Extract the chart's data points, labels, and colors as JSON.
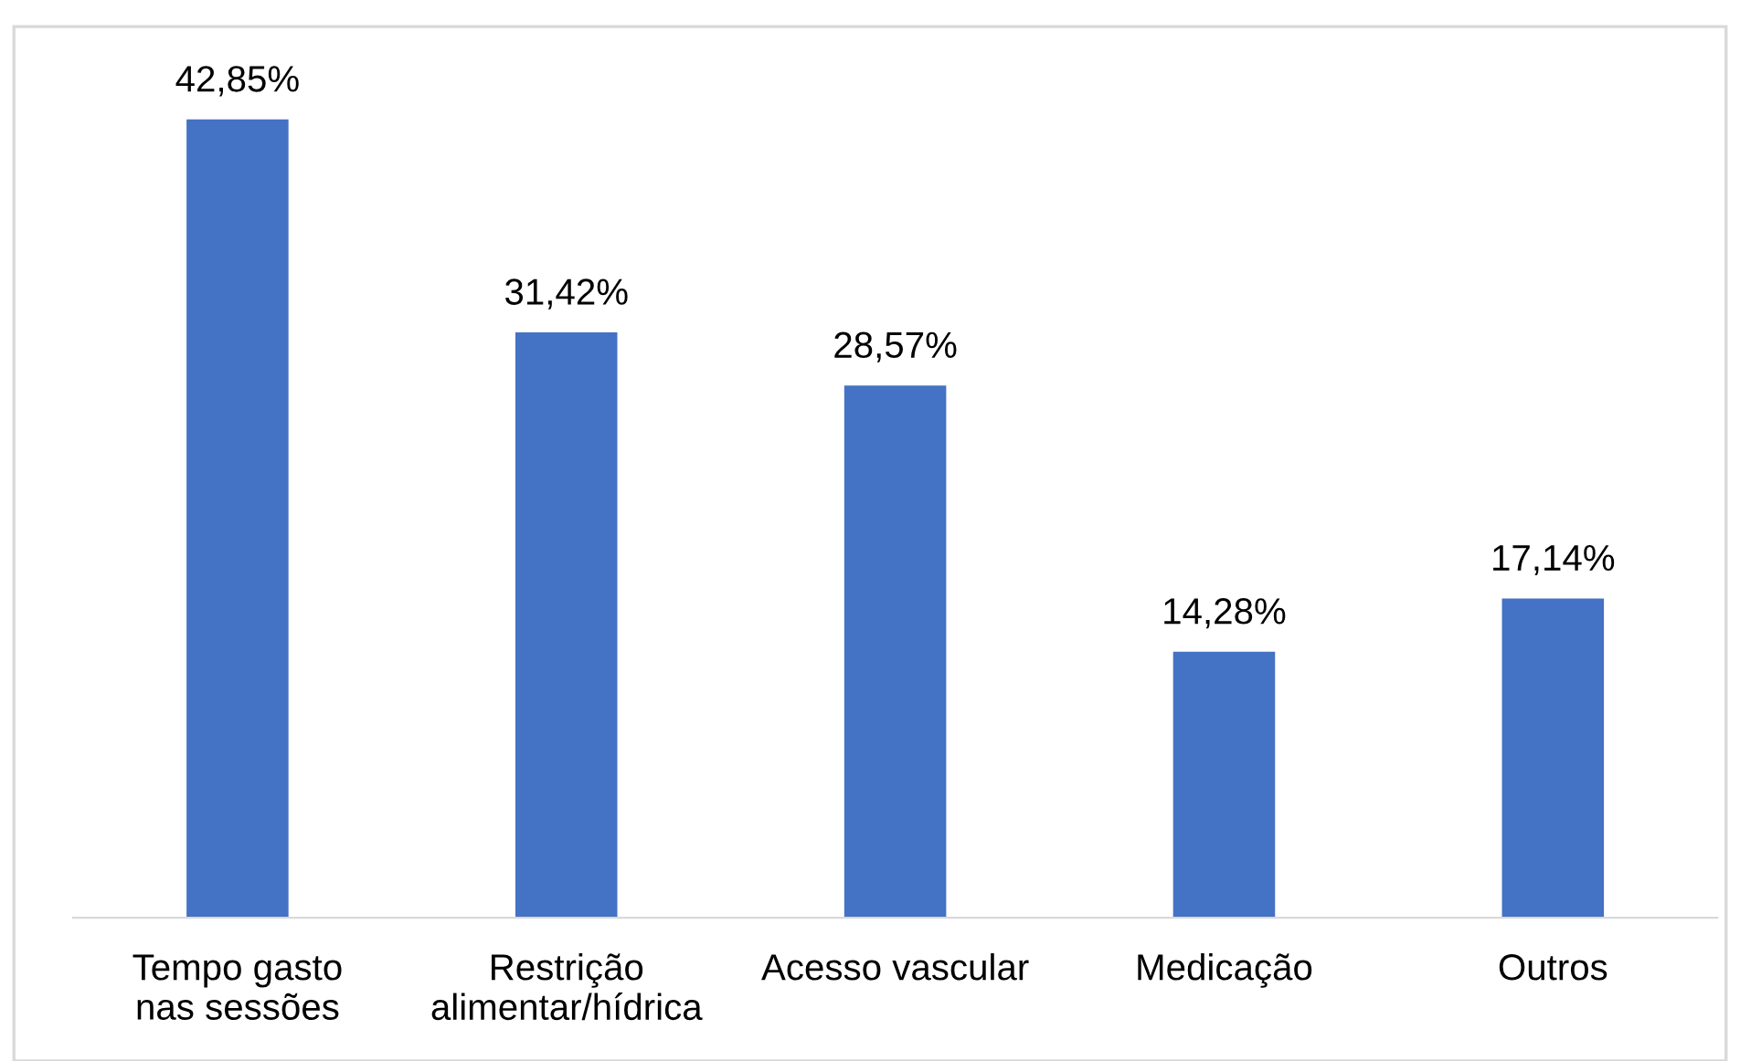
{
  "chart_data": {
    "type": "bar",
    "categories": [
      "Tempo gasto\nnas sessões",
      "Restrição\nalimentar/hídrica",
      "Acesso vascular",
      "Medicação",
      "Outros"
    ],
    "values": [
      42.85,
      31.42,
      28.57,
      14.28,
      17.14
    ],
    "value_labels": [
      "42,85%",
      "31,42%",
      "28,57%",
      "14,28%",
      "17,14%"
    ],
    "color": "#4472c4",
    "grid": false,
    "legend": false
  }
}
